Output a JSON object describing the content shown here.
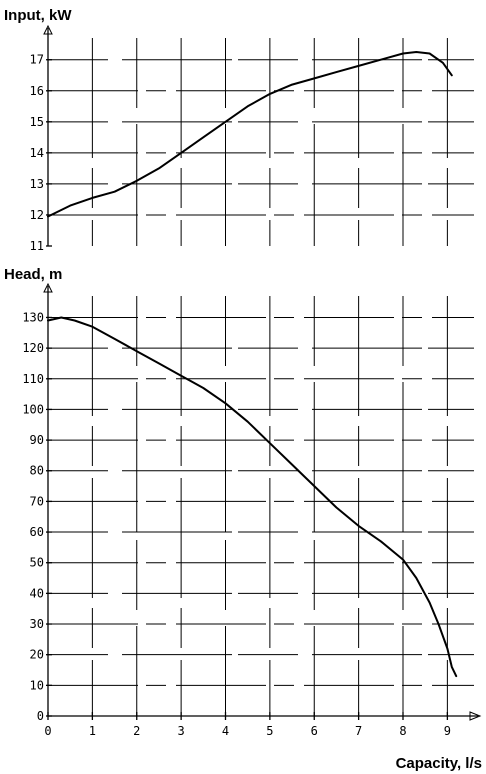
{
  "chart_data": [
    {
      "type": "line",
      "title": "",
      "ylabel": "Input, kW",
      "xlabel": "",
      "x_range": [
        0,
        9.5
      ],
      "ylim": [
        11,
        17.7
      ],
      "yticks": [
        11,
        12,
        13,
        14,
        15,
        16,
        17
      ],
      "ytick_labels": [
        "11",
        "12",
        "13",
        "14",
        "15",
        "16",
        "17"
      ],
      "grid": true,
      "x": [
        0,
        0.5,
        1,
        1.5,
        2,
        2.5,
        3,
        3.5,
        4,
        4.5,
        5,
        5.5,
        6,
        6.5,
        7,
        7.5,
        8,
        8.3,
        8.6,
        8.9,
        9.1
      ],
      "y": [
        11.95,
        12.3,
        12.55,
        12.75,
        13.1,
        13.5,
        14.0,
        14.5,
        15.0,
        15.5,
        15.9,
        16.2,
        16.4,
        16.6,
        16.8,
        17.0,
        17.2,
        17.25,
        17.2,
        16.9,
        16.5
      ]
    },
    {
      "type": "line",
      "title": "",
      "ylabel": "Head, m",
      "xlabel": "Capacity, l/s",
      "xlim": [
        0,
        9.6
      ],
      "ylim": [
        0,
        137
      ],
      "xticks": [
        0,
        1,
        2,
        3,
        4,
        5,
        6,
        7,
        8,
        9
      ],
      "xtick_labels": [
        "0",
        "1",
        "2",
        "3",
        "4",
        "5",
        "6",
        "7",
        "8",
        "9"
      ],
      "yticks": [
        0,
        10,
        20,
        30,
        40,
        50,
        60,
        70,
        80,
        90,
        100,
        110,
        120,
        130
      ],
      "ytick_labels": [
        "0",
        "10",
        "20",
        "30",
        "40",
        "50",
        "60",
        "70",
        "80",
        "90",
        "100",
        "110",
        "120",
        "130"
      ],
      "grid": true,
      "x": [
        0,
        0.3,
        0.6,
        1,
        1.5,
        2,
        2.5,
        3,
        3.5,
        4,
        4.5,
        5,
        5.5,
        6,
        6.5,
        7,
        7.5,
        8,
        8.3,
        8.6,
        8.8,
        9.0,
        9.1,
        9.2
      ],
      "y": [
        129,
        130,
        129,
        127,
        123,
        119,
        115,
        111,
        107,
        102,
        96,
        89,
        82,
        75,
        68,
        62,
        57,
        51,
        45,
        37,
        30,
        22,
        16,
        13
      ]
    }
  ]
}
